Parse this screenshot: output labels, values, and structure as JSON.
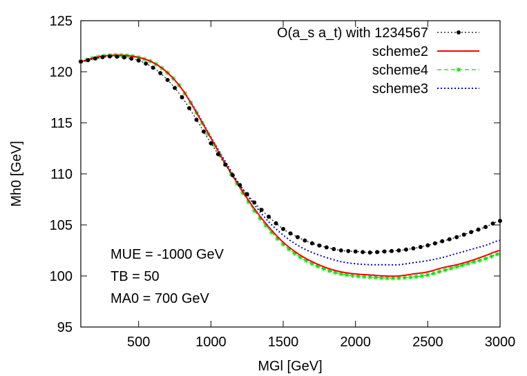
{
  "chart_data": {
    "type": "line",
    "title": "",
    "xlabel": "MGl [GeV]",
    "ylabel": "Mh0 [GeV]",
    "xlim": [
      100,
      3000
    ],
    "ylim": [
      95,
      125
    ],
    "xticks": [
      500,
      1000,
      1500,
      2000,
      2500,
      3000
    ],
    "yticks": [
      95,
      100,
      105,
      110,
      115,
      120,
      125
    ],
    "grid": false,
    "legend_position": "top-right",
    "annotations": [
      "MUE = -1000 GeV",
      "TB = 50",
      "MA0 = 700 GeV"
    ],
    "series": [
      {
        "name": "O(a_s a_t) with 1234567",
        "color": "#000000",
        "style": "dotted-with-circles",
        "x": [
          100,
          200,
          300,
          400,
          500,
          600,
          700,
          800,
          900,
          1000,
          1100,
          1200,
          1300,
          1400,
          1500,
          1600,
          1700,
          1800,
          1900,
          2000,
          2100,
          2200,
          2300,
          2400,
          2500,
          2600,
          2700,
          2800,
          2900,
          3000
        ],
        "y": [
          121.0,
          121.3,
          121.5,
          121.4,
          121.1,
          120.4,
          119.2,
          117.5,
          115.3,
          113.0,
          110.9,
          108.9,
          107.2,
          105.8,
          104.6,
          103.8,
          103.2,
          102.8,
          102.5,
          102.4,
          102.3,
          102.4,
          102.5,
          102.7,
          103.0,
          103.4,
          103.8,
          104.3,
          104.8,
          105.4
        ]
      },
      {
        "name": "scheme2",
        "color": "#ff0000",
        "style": "solid",
        "x": [
          100,
          200,
          300,
          400,
          500,
          600,
          700,
          800,
          900,
          1000,
          1100,
          1200,
          1300,
          1400,
          1500,
          1600,
          1700,
          1800,
          1900,
          2000,
          2100,
          2200,
          2300,
          2400,
          2500,
          2600,
          2700,
          2800,
          2900,
          3000
        ],
        "y": [
          121.0,
          121.4,
          121.6,
          121.6,
          121.4,
          120.9,
          119.9,
          118.3,
          116.0,
          113.5,
          111.0,
          108.7,
          106.6,
          104.8,
          103.3,
          102.2,
          101.4,
          100.8,
          100.4,
          100.2,
          100.1,
          100.0,
          100.0,
          100.2,
          100.4,
          100.8,
          101.1,
          101.5,
          102.0,
          102.5
        ]
      },
      {
        "name": "scheme4",
        "color": "#00dd00",
        "style": "dashed-with-stars",
        "x": [
          100,
          200,
          300,
          400,
          500,
          600,
          700,
          800,
          900,
          1000,
          1100,
          1200,
          1300,
          1400,
          1500,
          1600,
          1700,
          1800,
          1900,
          2000,
          2100,
          2200,
          2300,
          2400,
          2500,
          2600,
          2700,
          2800,
          2900,
          3000
        ],
        "y": [
          121.0,
          121.4,
          121.6,
          121.6,
          121.4,
          120.9,
          119.9,
          118.3,
          116.0,
          113.4,
          110.9,
          108.6,
          106.4,
          104.6,
          103.1,
          102.0,
          101.2,
          100.6,
          100.2,
          100.0,
          99.9,
          99.8,
          99.8,
          99.9,
          100.1,
          100.5,
          100.9,
          101.3,
          101.7,
          102.2
        ]
      },
      {
        "name": "scheme3",
        "color": "#0000cc",
        "style": "dotted",
        "x": [
          100,
          200,
          300,
          400,
          500,
          600,
          700,
          800,
          900,
          1000,
          1100,
          1200,
          1300,
          1400,
          1500,
          1600,
          1700,
          1800,
          1900,
          2000,
          2100,
          2200,
          2300,
          2400,
          2500,
          2600,
          2700,
          2800,
          2900,
          3000
        ],
        "y": [
          121.0,
          121.4,
          121.6,
          121.6,
          121.4,
          120.9,
          119.9,
          118.3,
          116.1,
          113.6,
          111.2,
          108.9,
          107.0,
          105.3,
          104.0,
          103.0,
          102.3,
          101.8,
          101.4,
          101.2,
          101.1,
          101.1,
          101.1,
          101.3,
          101.5,
          101.8,
          102.2,
          102.6,
          103.0,
          103.5
        ]
      }
    ]
  }
}
